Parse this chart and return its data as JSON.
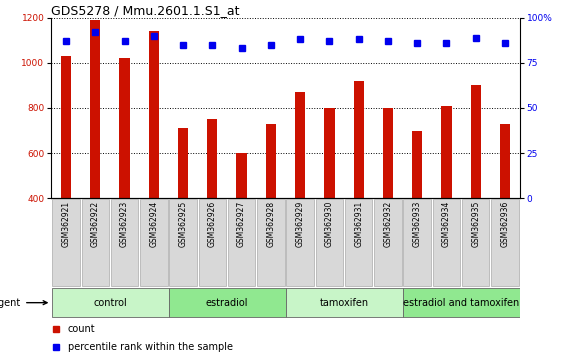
{
  "title": "GDS5278 / Mmu.2601.1.S1_at",
  "samples": [
    "GSM362921",
    "GSM362922",
    "GSM362923",
    "GSM362924",
    "GSM362925",
    "GSM362926",
    "GSM362927",
    "GSM362928",
    "GSM362929",
    "GSM362930",
    "GSM362931",
    "GSM362932",
    "GSM362933",
    "GSM362934",
    "GSM362935",
    "GSM362936"
  ],
  "counts": [
    1030,
    1190,
    1020,
    1140,
    710,
    750,
    600,
    730,
    870,
    800,
    920,
    800,
    700,
    810,
    900,
    730
  ],
  "percentiles": [
    87,
    92,
    87,
    90,
    85,
    85,
    83,
    85,
    88,
    87,
    88,
    87,
    86,
    86,
    89,
    86
  ],
  "groups": [
    {
      "label": "control",
      "start": 0,
      "end": 4,
      "color": "#c8f5c8"
    },
    {
      "label": "estradiol",
      "start": 4,
      "end": 8,
      "color": "#90e890"
    },
    {
      "label": "tamoxifen",
      "start": 8,
      "end": 12,
      "color": "#c8f5c8"
    },
    {
      "label": "estradiol and tamoxifen",
      "start": 12,
      "end": 16,
      "color": "#90e890"
    }
  ],
  "agent_label": "agent",
  "bar_color": "#cc1100",
  "dot_color": "#0000ee",
  "ylim_left": [
    400,
    1200
  ],
  "ylim_right": [
    0,
    100
  ],
  "yticks_left": [
    400,
    600,
    800,
    1000,
    1200
  ],
  "yticks_right": [
    0,
    25,
    50,
    75,
    100
  ],
  "background_color": "#ffffff",
  "plot_bg_color": "#ffffff",
  "sample_cell_color": "#d8d8d8",
  "grid_color": "#000000",
  "title_fontsize": 9,
  "tick_fontsize": 6.5,
  "label_fontsize": 5.5,
  "group_fontsize": 7,
  "legend_fontsize": 7,
  "legend_items": [
    "count",
    "percentile rank within the sample"
  ]
}
